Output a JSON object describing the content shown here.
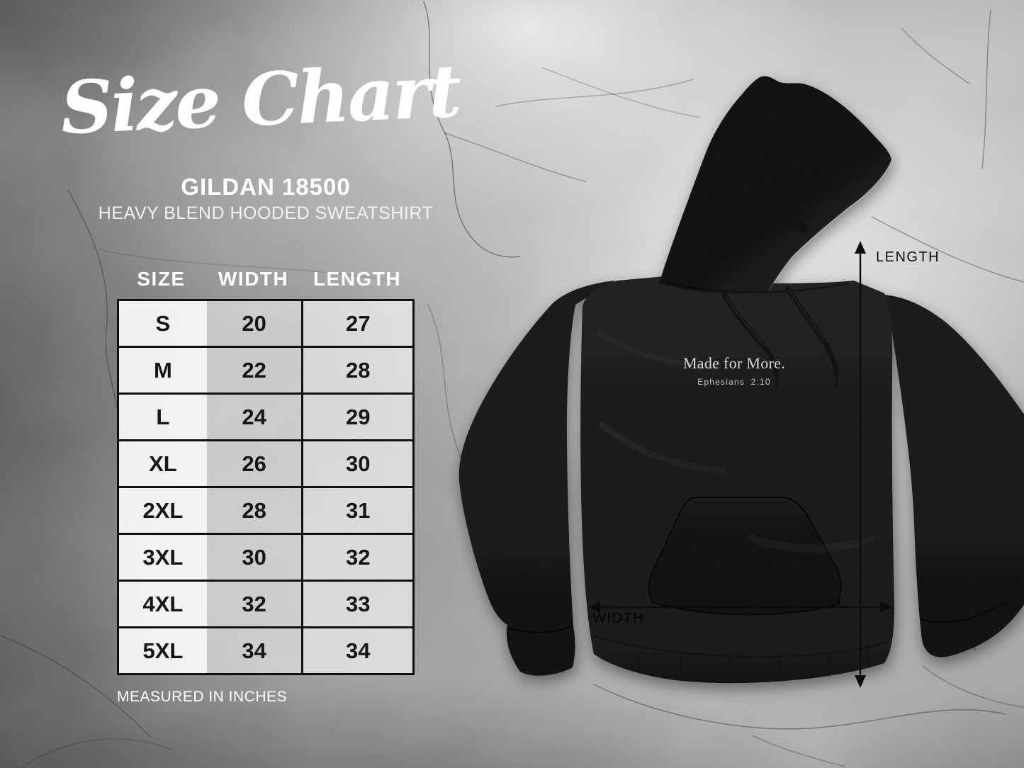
{
  "title": {
    "script": "Size Chart",
    "product_code": "GILDAN 18500",
    "product_name": "HEAVY BLEND HOODED SWEATSHIRT"
  },
  "size_table": {
    "headers": [
      "SIZE",
      "WIDTH",
      "LENGTH"
    ],
    "rows": [
      [
        "S",
        "20",
        "27"
      ],
      [
        "M",
        "22",
        "28"
      ],
      [
        "L",
        "24",
        "29"
      ],
      [
        "XL",
        "26",
        "30"
      ],
      [
        "2XL",
        "28",
        "31"
      ],
      [
        "3XL",
        "30",
        "32"
      ],
      [
        "4XL",
        "32",
        "33"
      ],
      [
        "5XL",
        "34",
        "34"
      ]
    ],
    "footnote": "MEASURED IN INCHES"
  },
  "garment": {
    "chest_print_line1": "Made for More.",
    "chest_print_line2": "Ephesians 2:10",
    "fabric_color": "#141414"
  },
  "dimension_labels": {
    "length": "LENGTH",
    "width": "WIDTH"
  },
  "colors": {
    "heading_text": "#ffffff",
    "table_text": "#161616",
    "table_border": "#101010",
    "dimension_text": "#0e0e0e",
    "chest_print_text": "#dbd7cf"
  },
  "chart_data": {
    "type": "table",
    "title": "Size Chart",
    "subtitle": "GILDAN 18500 Heavy Blend Hooded Sweatshirt",
    "columns": [
      "SIZE",
      "WIDTH",
      "LENGTH"
    ],
    "rows": [
      [
        "S",
        20,
        27
      ],
      [
        "M",
        22,
        28
      ],
      [
        "L",
        24,
        29
      ],
      [
        "XL",
        26,
        30
      ],
      [
        "2XL",
        28,
        31
      ],
      [
        "3XL",
        30,
        32
      ],
      [
        "4XL",
        32,
        33
      ],
      [
        "5XL",
        34,
        34
      ]
    ],
    "units": "inches"
  }
}
